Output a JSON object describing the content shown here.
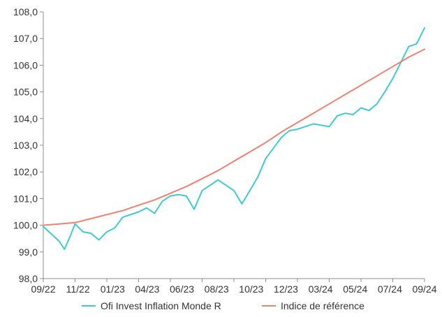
{
  "chart_data": {
    "type": "line",
    "title": "",
    "xlabel": "",
    "ylabel": "",
    "x_ticks": [
      "09/22",
      "11/22",
      "01/23",
      "04/23",
      "06/23",
      "08/23",
      "10/23",
      "12/23",
      "03/24",
      "05/24",
      "07/24",
      "09/24"
    ],
    "y_ticks": [
      "98,0",
      "99,0",
      "100,0",
      "101,0",
      "102,0",
      "103,0",
      "104,0",
      "105,0",
      "106,0",
      "107,0",
      "108,0"
    ],
    "ylim": [
      98,
      108
    ],
    "grid": false,
    "legend_position": "bottom",
    "colors": {
      "fund": "#3ec9d6",
      "benchmark": "#f08070",
      "axis": "#8c8c8c",
      "text": "#333333"
    },
    "series": [
      {
        "name": "Ofi Invest Inflation Monde R",
        "color": "#3ec9d6",
        "x": [
          "09/22",
          "10/22",
          "10/22",
          "10/22",
          "11/22",
          "11/22",
          "12/22",
          "12/22",
          "01/23",
          "01/23",
          "02/23",
          "03/23",
          "03/23",
          "04/23",
          "04/23",
          "05/23",
          "05/23",
          "06/23",
          "06/23",
          "07/23",
          "07/23",
          "08/23",
          "08/23",
          "09/23",
          "09/23",
          "10/23",
          "10/23",
          "11/23",
          "11/23",
          "12/23",
          "12/23",
          "01/24",
          "02/24",
          "03/24",
          "03/24",
          "04/24",
          "04/24",
          "05/24",
          "05/24",
          "06/24",
          "06/24",
          "07/24",
          "07/24",
          "08/24",
          "08/24",
          "09/24"
        ],
        "values": [
          99.95,
          99.4,
          99.1,
          99.55,
          100.05,
          99.75,
          99.7,
          99.45,
          99.75,
          99.9,
          100.3,
          100.5,
          100.65,
          100.45,
          100.9,
          101.1,
          101.15,
          101.1,
          100.6,
          101.3,
          101.5,
          101.7,
          101.5,
          101.3,
          100.8,
          101.3,
          101.8,
          102.5,
          102.9,
          103.3,
          103.55,
          103.6,
          103.8,
          103.7,
          104.1,
          104.2,
          104.15,
          104.4,
          104.3,
          104.55,
          105.0,
          105.5,
          106.1,
          106.7,
          106.8,
          107.4
        ]
      },
      {
        "name": "Indice de référence",
        "color": "#f08070",
        "x": [
          "09/22",
          "10/22",
          "11/22",
          "12/22",
          "01/23",
          "02/23",
          "03/23",
          "04/23",
          "05/23",
          "06/23",
          "07/23",
          "08/23",
          "09/23",
          "10/23",
          "11/23",
          "12/23",
          "01/24",
          "02/24",
          "03/24",
          "04/24",
          "05/24",
          "06/24",
          "07/24",
          "08/24",
          "09/24"
        ],
        "values": [
          100.0,
          100.05,
          100.1,
          100.25,
          100.4,
          100.55,
          100.75,
          100.95,
          101.2,
          101.45,
          101.75,
          102.05,
          102.4,
          102.75,
          103.1,
          103.5,
          103.85,
          104.2,
          104.55,
          104.9,
          105.25,
          105.6,
          105.95,
          106.3,
          106.6
        ]
      }
    ]
  }
}
